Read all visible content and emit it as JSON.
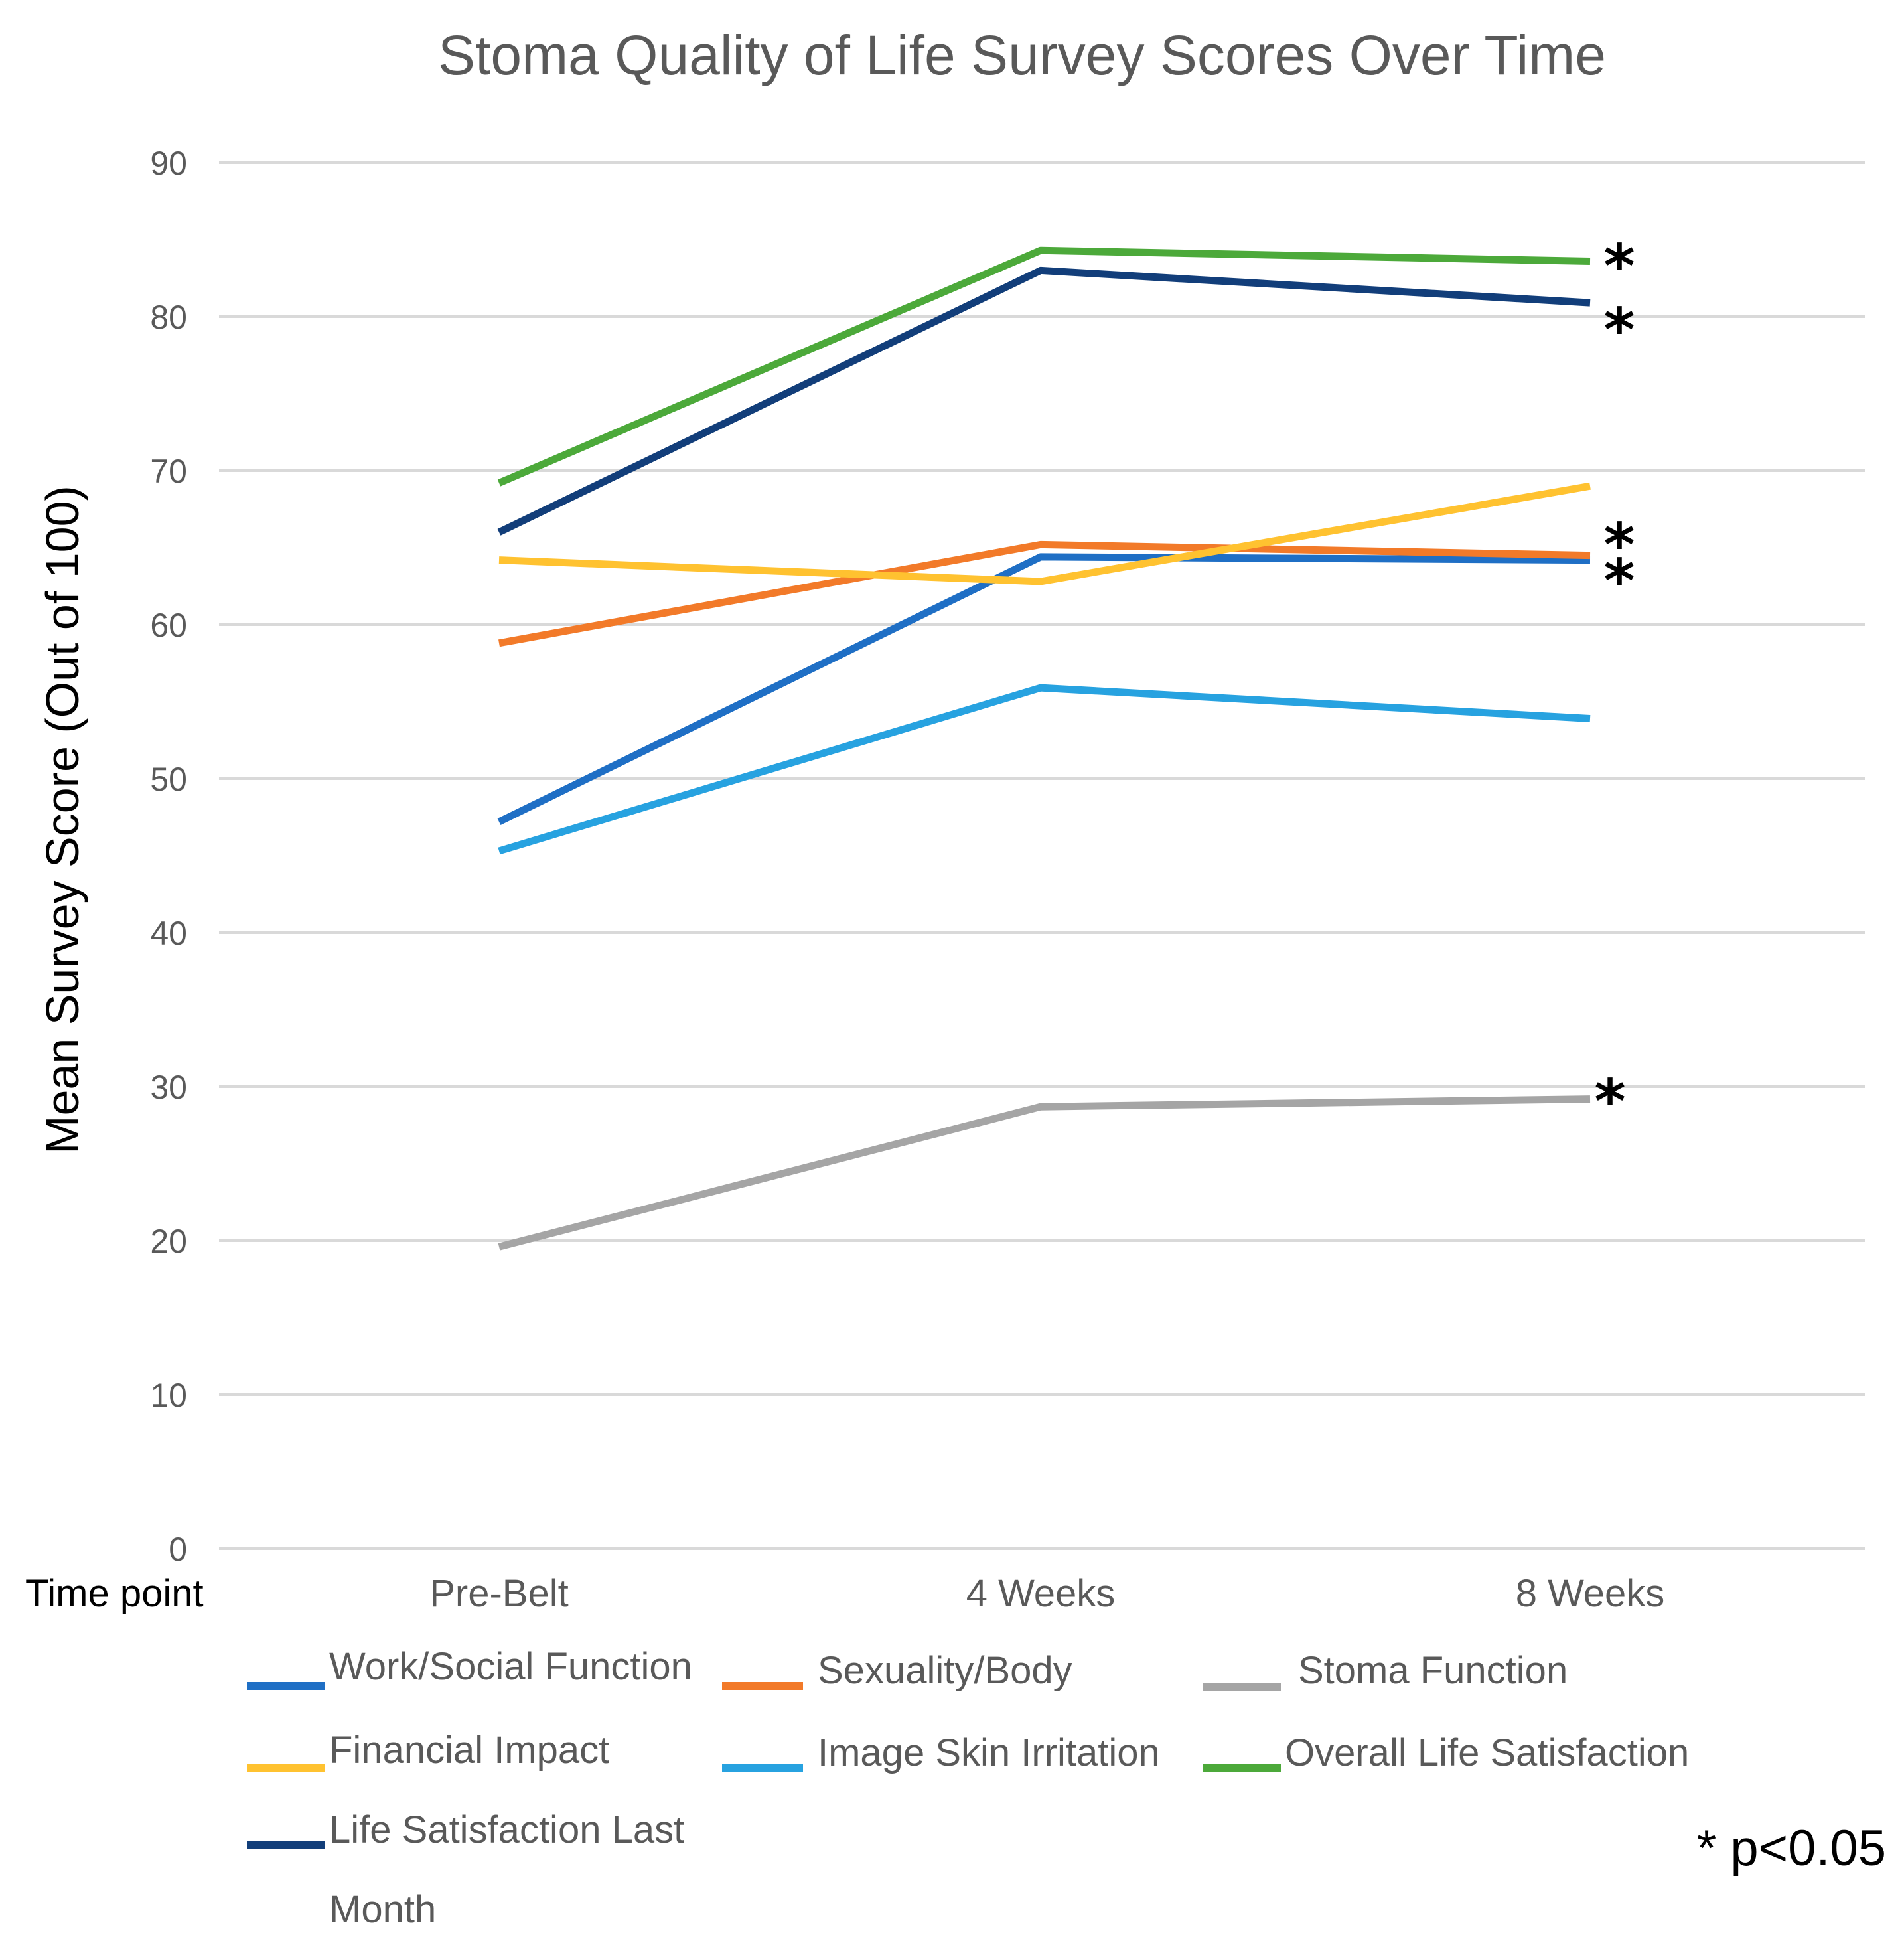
{
  "chart_data": {
    "type": "line",
    "title": "Stoma Quality of Life Survey Scores Over Time",
    "xlabel": "Time point",
    "ylabel": "Mean Survey Score (Out of 100)",
    "categories": [
      "Pre-Belt",
      "4 Weeks",
      "8 Weeks"
    ],
    "ylim": [
      0,
      90
    ],
    "yticks": [
      0,
      10,
      20,
      30,
      40,
      50,
      60,
      70,
      80,
      90
    ],
    "grid": true,
    "legend_position": "bottom",
    "series": [
      {
        "name": "Work/Social Function",
        "color": "#1f6fc5",
        "values": [
          47.2,
          64.4,
          64.2
        ],
        "significant": true
      },
      {
        "name": "Sexuality/Body",
        "color": "#f27a29",
        "values": [
          58.8,
          65.2,
          64.5
        ],
        "significant": true
      },
      {
        "name": "Stoma Function",
        "color": "#a5a5a5",
        "values": [
          19.6,
          28.7,
          29.2
        ],
        "significant": true
      },
      {
        "name": "Financial Impact",
        "color": "#ffc230",
        "values": [
          64.2,
          62.8,
          69.0
        ],
        "significant": false
      },
      {
        "name": "Image Skin Irritation",
        "color": "#27a2e0",
        "values": [
          45.3,
          55.9,
          53.9
        ],
        "significant": false
      },
      {
        "name": "Overall Life Satisfaction",
        "color": "#4ca93a",
        "values": [
          69.2,
          84.3,
          83.6
        ],
        "significant": true
      },
      {
        "name": "Life Satisfaction Last Month",
        "color": "#123e7a",
        "values": [
          66.0,
          83.0,
          80.9
        ],
        "significant": true
      }
    ],
    "legend_labels": {
      "work": "Work/Social Function",
      "sexuality": "Sexuality/Body",
      "stoma": "Stoma Function",
      "financial": "Financial Impact",
      "image": "Image Skin Irritation",
      "overall": "Overall Life Satisfaction",
      "last_month_line1": "Life Satisfaction Last",
      "last_month_line2": "Month"
    },
    "significance_marker": "*",
    "significance_note": "* p<0.05"
  }
}
